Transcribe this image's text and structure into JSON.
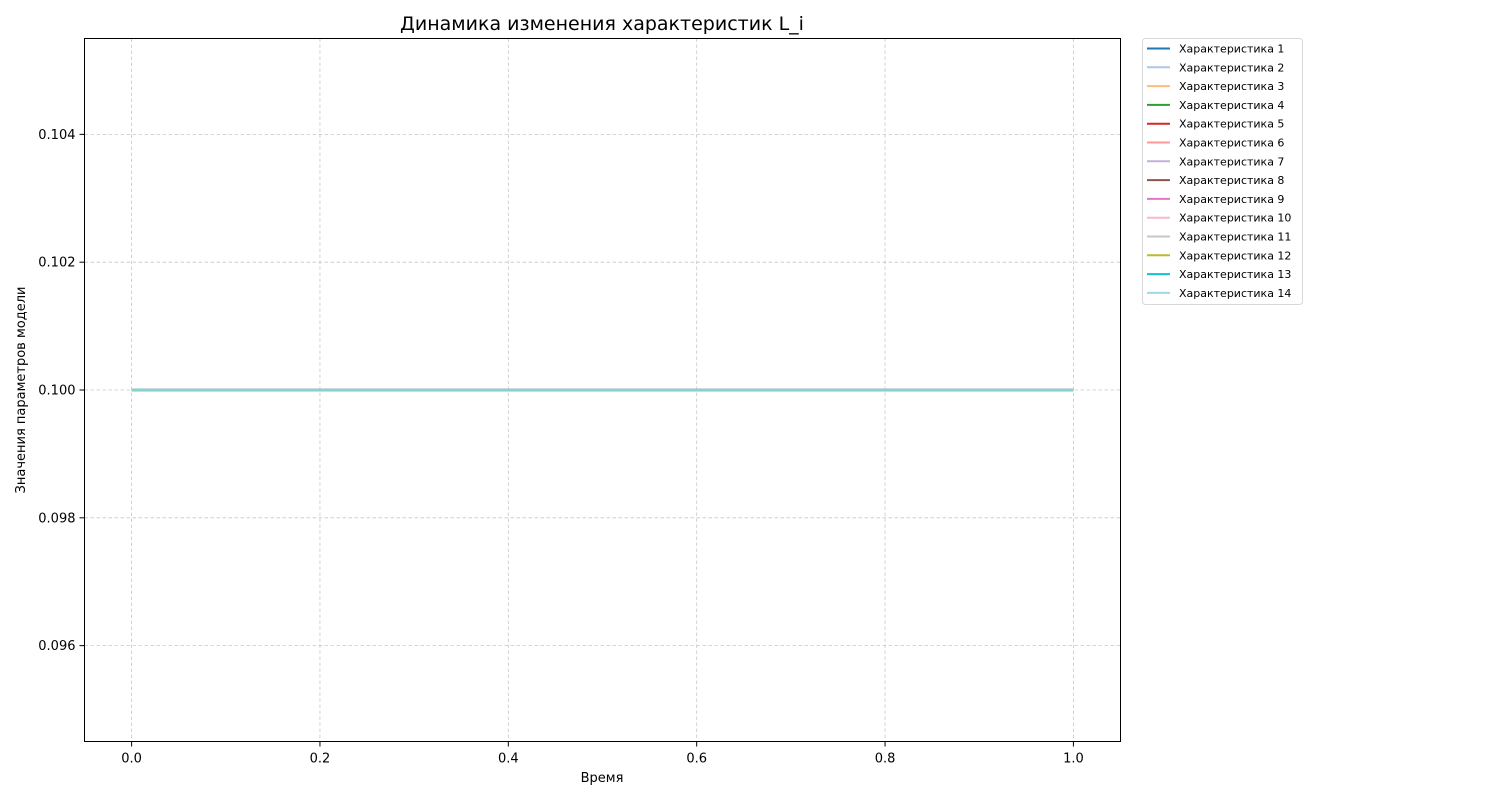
{
  "chart_data": {
    "type": "line",
    "title": "Динамика изменения характеристик L_i",
    "xlabel": "Время",
    "ylabel": "Значения параметров модели",
    "xlim": [
      -0.05,
      1.05
    ],
    "ylim": [
      0.0945,
      0.1055
    ],
    "x_ticks": [
      0.0,
      0.2,
      0.4,
      0.6,
      0.8,
      1.0
    ],
    "x_tick_labels": [
      "0.0",
      "0.2",
      "0.4",
      "0.6",
      "0.8",
      "1.0"
    ],
    "y_ticks": [
      0.096,
      0.098,
      0.1,
      0.102,
      0.104
    ],
    "y_tick_labels": [
      "0.096",
      "0.098",
      "0.100",
      "0.102",
      "0.104"
    ],
    "grid": true,
    "grid_style": "dashed",
    "legend_position": "outside right, top",
    "x": [
      0.0,
      1.0
    ],
    "series": [
      {
        "name": "Характеристика 1",
        "color": "#1f77b4",
        "values": [
          0.1,
          0.1
        ]
      },
      {
        "name": "Характеристика 2",
        "color": "#aec7e8",
        "values": [
          0.1,
          0.1
        ]
      },
      {
        "name": "Характеристика 3",
        "color": "#ffbb78",
        "values": [
          0.1,
          0.1
        ]
      },
      {
        "name": "Характеристика 4",
        "color": "#2ca02c",
        "values": [
          0.1,
          0.1
        ]
      },
      {
        "name": "Характеристика 5",
        "color": "#d62728",
        "values": [
          0.1,
          0.1
        ]
      },
      {
        "name": "Характеристика 6",
        "color": "#ff9896",
        "values": [
          0.1,
          0.1
        ]
      },
      {
        "name": "Характеристика 7",
        "color": "#c5b0d5",
        "values": [
          0.1,
          0.1
        ]
      },
      {
        "name": "Характеристика 8",
        "color": "#8c564b",
        "values": [
          0.1,
          0.1
        ]
      },
      {
        "name": "Характеристика 9",
        "color": "#e377c2",
        "values": [
          0.1,
          0.1
        ]
      },
      {
        "name": "Характеристика 10",
        "color": "#f7b6d2",
        "values": [
          0.1,
          0.1
        ]
      },
      {
        "name": "Характеристика 11",
        "color": "#c7c7c7",
        "values": [
          0.1,
          0.1
        ]
      },
      {
        "name": "Характеристика 12",
        "color": "#bcbd22",
        "values": [
          0.1,
          0.1
        ]
      },
      {
        "name": "Характеристика 13",
        "color": "#17becf",
        "values": [
          0.1,
          0.1
        ]
      },
      {
        "name": "Характеристика 14",
        "color": "#9edae5",
        "values": [
          0.1,
          0.1
        ]
      }
    ]
  }
}
